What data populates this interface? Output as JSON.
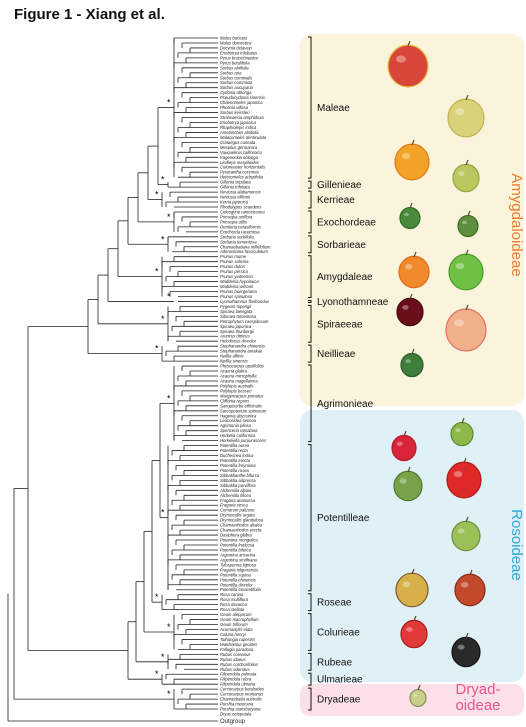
{
  "title": "Figure 1 - Xiang et al.",
  "subfamilies": [
    {
      "name": "Amygdaloideae",
      "color": "#f07a2a",
      "fill": "#fbf4dc"
    },
    {
      "name": "Rosoideae",
      "color": "#2aa6d8",
      "fill": "#dff1f7"
    },
    {
      "name": "Dryad-\noideae",
      "color": "#e8558a",
      "fill": "#fbe0ea"
    }
  ],
  "tribes": [
    {
      "name": "Maleae",
      "from": 0,
      "to": 28
    },
    {
      "name": "Gillenieae",
      "from": 29,
      "to": 30
    },
    {
      "name": "Kerrieae",
      "from": 31,
      "to": 34
    },
    {
      "name": "Exochordeae",
      "from": 35,
      "to": 39
    },
    {
      "name": "Sorbarieae",
      "from": 40,
      "to": 43
    },
    {
      "name": "Amygdaleae",
      "from": 44,
      "to": 52
    },
    {
      "name": "Lyonothamneae",
      "from": 53,
      "to": 53
    },
    {
      "name": "Spiraeeae",
      "from": 54,
      "to": 61
    },
    {
      "name": "Neillieae",
      "from": 62,
      "to": 65
    },
    {
      "name": "Agrimonieae",
      "from": 66,
      "to": 81
    },
    {
      "name": "Potentilleae",
      "from": 82,
      "to": 111
    },
    {
      "name": "Roseae",
      "from": 112,
      "to": 115
    },
    {
      "name": "Colurieae",
      "from": 116,
      "to": 123
    },
    {
      "name": "Rubeae",
      "from": 124,
      "to": 127
    },
    {
      "name": "Ulmarieae",
      "from": 128,
      "to": 130
    },
    {
      "name": "Dryadeae",
      "from": 131,
      "to": 135
    }
  ],
  "taxa": [
    "Malus baccata",
    "Malus domestica",
    "Docynia delavayi",
    "Eriobotrya trilobatus",
    "Pyrus bretschneideri",
    "Pyrus betulifolia",
    "Sorbus alnifolia",
    "Sorbus aria",
    "Sorbus torminalis",
    "Sorbus commixta",
    "Sorbus aucuparia",
    "Cydonia oblonga",
    "Pseudocydonia sinensis",
    "Chaenomeles japonica",
    "Photinia villosa",
    "Sorbus keissleri",
    "Stranvaesia amphidoxa",
    "Eriobotrya japonica",
    "Rhaphiolepis indica",
    "Amelanchier alnifolia",
    "Malacomeles denticulata",
    "Crataegus cuneata",
    "Mespilus germanica",
    "Vauquelinia californica",
    "Kageneckia oblonga",
    "Lindleya mespiloides",
    "Cotoneaster horizontalis",
    "Pyracantha coccinea",
    "Heteromeles arbutifolia",
    "Gillenia stipulata",
    "Gillenia trifoliata",
    "Neviusia alabamensis",
    "Neviusia cliftonii",
    "Kerria japonica",
    "Rhodotypos scandens",
    "Coleogyne ramosissima",
    "Prinsepia uniflora",
    "Prinsepia utilis",
    "Oemleria cerasiformis",
    "Exochorda racemosa",
    "Sorbaria sorbifolia",
    "Sorbaria tomentosa",
    "Chamaebatiaria millefolium",
    "Adenostoma fasciculatum",
    "Prunus mume",
    "Prunus salicina",
    "Prunus dulcis",
    "Prunus persica",
    "Prunus yedoensis",
    "Maddenia hypoleuca",
    "Maddenia wilsonii",
    "Prunus buergeriana",
    "Prunus spinulosa",
    "Lyonothamnus floribundus",
    "Pygeum topengii",
    "Spiraea laevigata",
    "Sibiraea tomentosa",
    "Petrophytum caespitosum",
    "Spiraea japonica",
    "Spiraea thunbergii",
    "Aruncus dioicus",
    "Holodiscus discolor",
    "Stephanandra chinensis",
    "Stephanandra tanakae",
    "Neillia affinis",
    "Neillia sinensis",
    "Physocarpus opulifolius",
    "Acaena glabra",
    "Acaena microphylla",
    "Acaena magellanica",
    "Polylepis australis",
    "Polylepis besseri",
    "Margyricarpus pinnatus",
    "Cliffortia repens",
    "Sanguisorba officinalis",
    "Sarcopoterium spinosum",
    "Hagenia abyssinica",
    "Leucosidea sericea",
    "Agrimonia pilosa",
    "Spenceria ramalana",
    "Horkelia californica",
    "Horkeliella purpurascens",
    "Potentilla aurea",
    "Potentilla recta",
    "Duchesnea indica",
    "Potentilla erecta",
    "Potentilla freyniana",
    "Potentilla rosea",
    "Sibbaldianthe bifurca",
    "Sibbaldia adpressa",
    "Sibbaldia parviflora",
    "Alchemilla alpina",
    "Alchemilla filicea",
    "Fragaria ananassa",
    "Fragaria vesca",
    "Comarum palustre",
    "Drymocallis arguta",
    "Drymocallis glandulosa",
    "Chamaerhodos altaica",
    "Chamaerhodos erecta",
    "Dasiphora glabra",
    "Potaninia mongolica",
    "Potentilla fruticosa",
    "Potentilla bifurca",
    "Argentina anserina",
    "Argentina smithiana",
    "Tylosperma lignosa",
    "Fragaria nilgerrensis",
    "Potentilla supina",
    "Potentilla chinensis",
    "Potentilla discolor",
    "Potentilla tanacetifolia",
    "Rosa canina",
    "Rosa multiflora",
    "Rosa davurica",
    "Rosa stellata",
    "Geum aleppicum",
    "Geum macrophyllum",
    "Geum triflorum",
    "Acomastylis elata",
    "Coluria henryi",
    "Taihangia rupestris",
    "Waldsteinia geoides",
    "Fallugia paradoxa",
    "Rubus coreanus",
    "Rubus idaeus",
    "Rubus corchorifolius",
    "Rubus odoratus",
    "Filipendula palmata",
    "Filipendula rubra",
    "Filipendula ulmaria",
    "Cercocarpus betuloides",
    "Cercocarpus montanus",
    "Chamaebatia australis",
    "Purshia mexicana",
    "Purshia stansburyana",
    "Dryas octopetala"
  ],
  "outgroup": "Outgroup",
  "support_symbol": "*",
  "icons": [
    "apple-icon",
    "pear-icon",
    "apricot-icon",
    "quince-icon",
    "kerria-flower-icon",
    "exochorda-fruit-icon",
    "plum-icon",
    "almond-icon",
    "cherry-icon",
    "peach-icon",
    "neillia-flower-icon",
    "strawberry-red-icon",
    "agrimonia-fruit-icon",
    "strawberry-icon",
    "potentilla-fruit-icon",
    "geum-fruit-icon",
    "rose-hip-icon",
    "rubus-berry-icon",
    "raspberry-icon",
    "blackberry-icon",
    "dryas-fruit-icon"
  ]
}
